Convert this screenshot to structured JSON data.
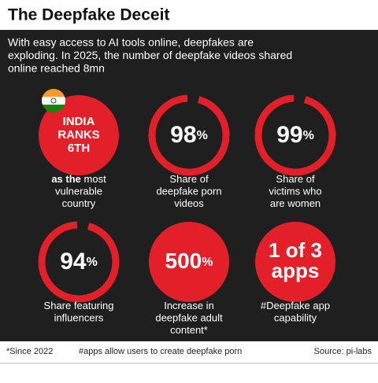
{
  "header": {
    "title": "The Deepfake Deceit",
    "subtitle": [
      "With easy access to AI tools online, deepfakes are",
      "exploding. In 2025, the number of deepfake videos shared",
      "online reached 8mn"
    ]
  },
  "stats": [
    {
      "headline": [
        "INDIA",
        "RANKS",
        "6TH"
      ],
      "caption_lead": "as the",
      "caption": [
        "most",
        "vulnerable",
        "country"
      ]
    },
    {
      "value": "98",
      "unit": "%",
      "caption": [
        "Share of",
        "deepfake porn",
        "videos"
      ]
    },
    {
      "value": "99",
      "unit": "%",
      "caption": [
        "Share of",
        "victims who",
        "are women"
      ]
    },
    {
      "value": "94",
      "unit": "%",
      "caption": [
        "Share featuring",
        "influencers"
      ]
    },
    {
      "value": "500",
      "unit": "%",
      "caption": [
        "Increase in",
        "deepfake adult",
        "content*"
      ]
    },
    {
      "headline": [
        "1 of 3",
        "apps"
      ],
      "caption": [
        "#Deepfake app",
        "capability"
      ]
    }
  ],
  "footer": {
    "notes": [
      "*Since 2022",
      "#apps allow users to create deepfake porn"
    ],
    "source": "Source: pi-labs"
  }
}
